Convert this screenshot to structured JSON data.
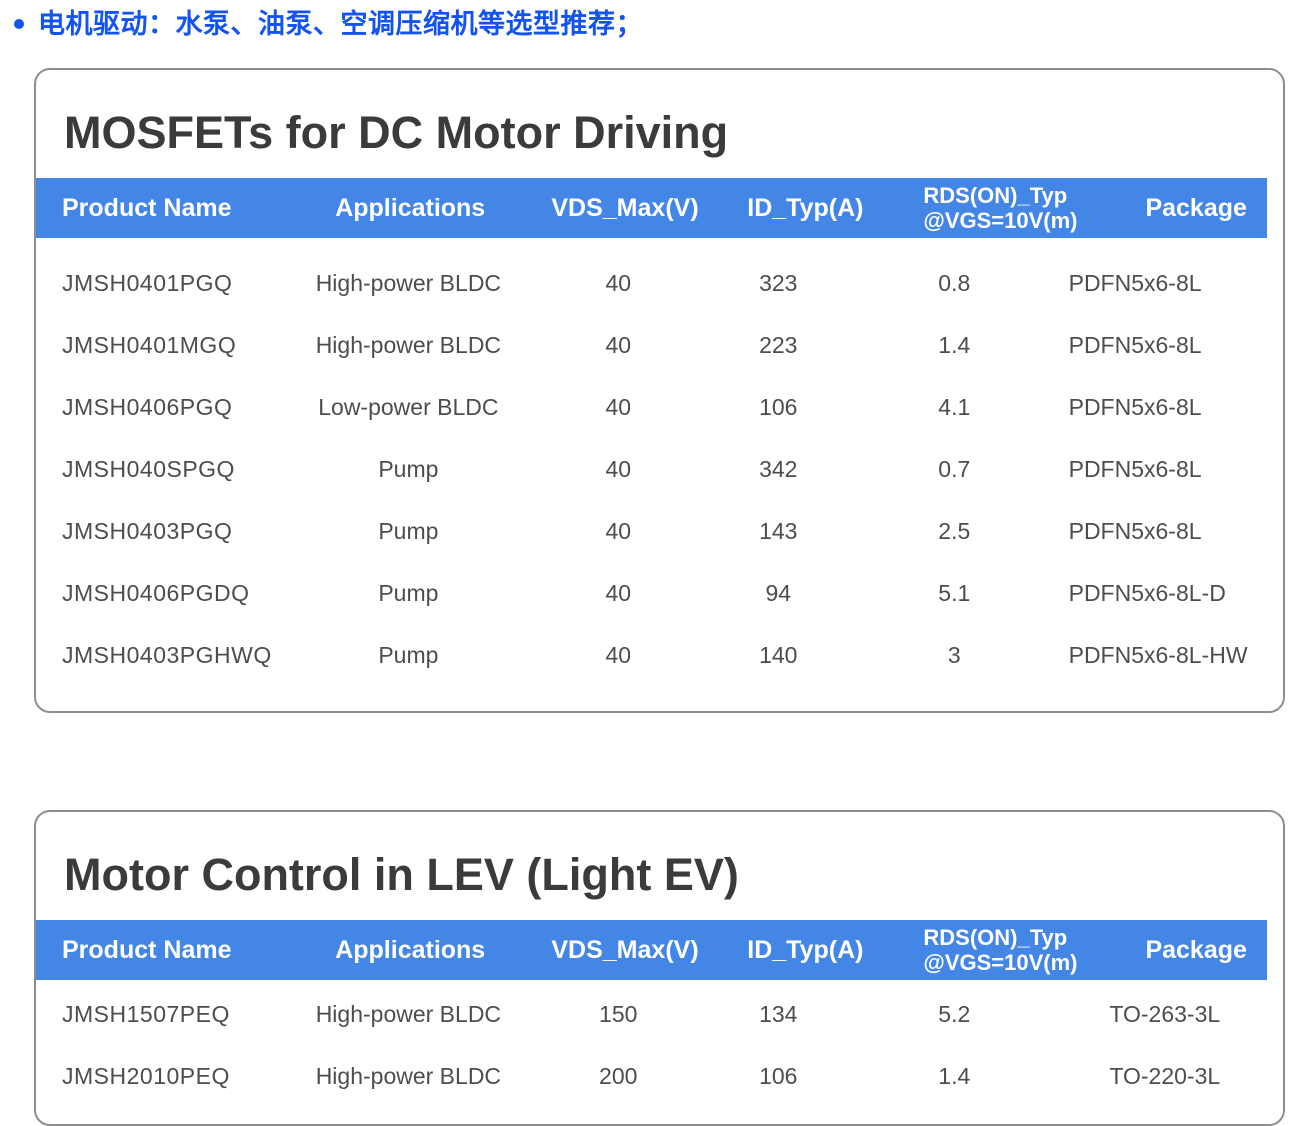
{
  "bullet": {
    "text": "电机驱动：水泵、油泵、空调压缩机等选型推荐；"
  },
  "colors": {
    "bullet_blue": "#1353f0",
    "header_band_blue": "#4486e5",
    "title_gray": "#3b3b3b",
    "row_text_gray": "#4d4d4d",
    "card_border_gray": "#8e8e8e"
  },
  "tables": [
    {
      "title": "MOSFETs for DC Motor Driving",
      "columns": {
        "product": "Product Name",
        "applications": "Applications",
        "vds": "VDS_Max(V)",
        "id": "ID_Typ(A)",
        "rds": "RDS(ON)_Typ\n@VGS=10V(m)",
        "package": "Package"
      },
      "rows": [
        {
          "product": "JMSH0401PGQ",
          "application": "High-power BLDC",
          "vds": "40",
          "id": "323",
          "rds": "0.8",
          "package": "PDFN5x6-8L"
        },
        {
          "product": "JMSH0401MGQ",
          "application": "High-power BLDC",
          "vds": "40",
          "id": "223",
          "rds": "1.4",
          "package": "PDFN5x6-8L"
        },
        {
          "product": "JMSH0406PGQ",
          "application": "Low-power BLDC",
          "vds": "40",
          "id": "106",
          "rds": "4.1",
          "package": "PDFN5x6-8L"
        },
        {
          "product": "JMSH040SPGQ",
          "application": "Pump",
          "vds": "40",
          "id": "342",
          "rds": "0.7",
          "package": "PDFN5x6-8L"
        },
        {
          "product": "JMSH0403PGQ",
          "application": "Pump",
          "vds": "40",
          "id": "143",
          "rds": "2.5",
          "package": "PDFN5x6-8L"
        },
        {
          "product": "JMSH0406PGDQ",
          "application": "Pump",
          "vds": "40",
          "id": "94",
          "rds": "5.1",
          "package": "PDFN5x6-8L-D"
        },
        {
          "product": "JMSH0403PGHWQ",
          "application": "Pump",
          "vds": "40",
          "id": "140",
          "rds": "3",
          "package": "PDFN5x6-8L-HW"
        }
      ]
    },
    {
      "title": "Motor Control in LEV (Light EV)",
      "columns": {
        "product": "Product Name",
        "applications": "Applications",
        "vds": "VDS_Max(V)",
        "id": "ID_Typ(A)",
        "rds": "RDS(ON)_Typ\n@VGS=10V(m)",
        "package": "Package"
      },
      "rows": [
        {
          "product": "JMSH1507PEQ",
          "application": "High-power BLDC",
          "vds": "150",
          "id": "134",
          "rds": "5.2",
          "package": "TO-263-3L"
        },
        {
          "product": "JMSH2010PEQ",
          "application": "High-power BLDC",
          "vds": "200",
          "id": "106",
          "rds": "1.4",
          "package": "TO-220-3L"
        }
      ]
    }
  ]
}
